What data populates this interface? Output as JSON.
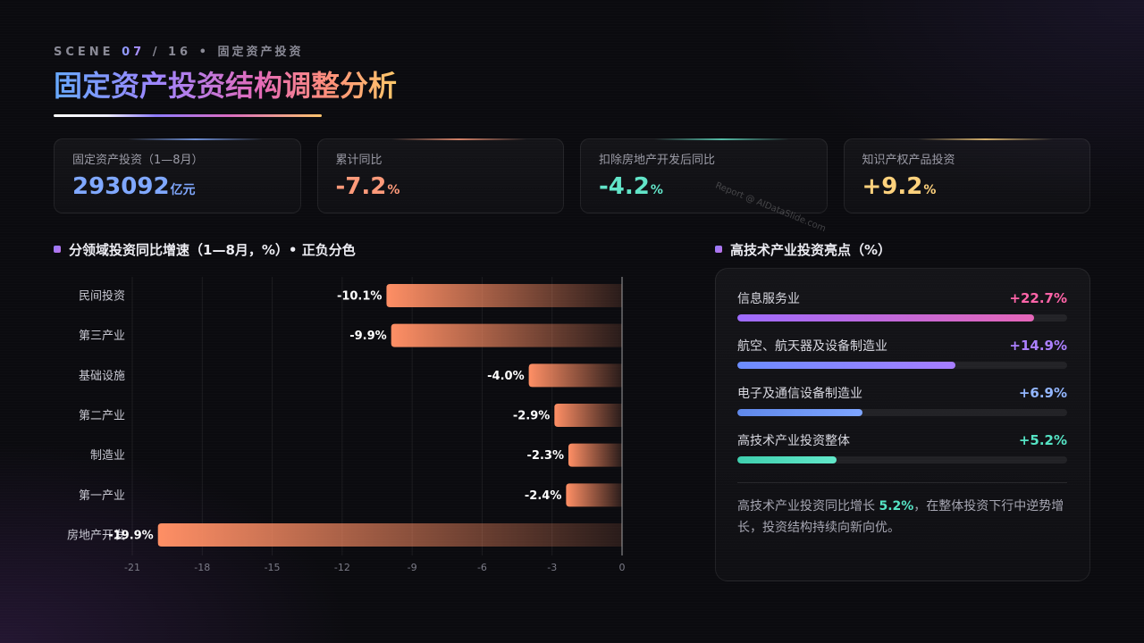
{
  "scene": {
    "label": "SCENE",
    "current": "07",
    "separator": "/",
    "total": "16",
    "bullet": "•",
    "section": "固定资产投资"
  },
  "title": "固定资产投资结构调整分析",
  "kpis": [
    {
      "label": "固定资产投资（1—8月）",
      "value": "293092",
      "unit": "亿元",
      "color": "#80a8ff"
    },
    {
      "label": "累计同比",
      "value": "-7.2",
      "unit": "%",
      "color": "#ff9a7a"
    },
    {
      "label": "扣除房地产开发后同比",
      "value": "-4.2",
      "unit": "%",
      "color": "#62e4c8"
    },
    {
      "label": "知识产权产品投资",
      "value": "+9.2",
      "unit": "%",
      "color": "#ffd27d"
    }
  ],
  "watermark": "Report @ AIDataSlide.com",
  "chart_data": {
    "type": "bar",
    "orientation": "horizontal",
    "title": "分领域投资同比增速（1—8月，%）• 正负分色",
    "categories": [
      "民间投资",
      "第三产业",
      "基础设施",
      "第二产业",
      "制造业",
      "第一产业",
      "房地产开发"
    ],
    "values": [
      -10.1,
      -9.9,
      -4.0,
      -2.9,
      -2.3,
      -2.4,
      -19.9
    ],
    "data_labels": [
      "-10.1%",
      "-9.9%",
      "-4.0%",
      "-2.9%",
      "-2.3%",
      "-2.4%",
      "-19.9%"
    ],
    "xlim": [
      -21,
      0
    ],
    "xticks": [
      -21,
      -18,
      -15,
      -12,
      -9,
      -6,
      -3,
      0
    ],
    "grid": true,
    "bar_color": "#ff8f65"
  },
  "highlights": {
    "title": "高技术产业投资亮点（%）",
    "items": [
      {
        "label": "信息服务业",
        "value": "+22.7%",
        "fill": 0.9,
        "color": "#ff64a8",
        "bar_colors": [
          "#9d6cff",
          "#e566b8"
        ]
      },
      {
        "label": "航空、航天器及设备制造业",
        "value": "+14.9%",
        "fill": 0.66,
        "color": "#ac80ff",
        "bar_colors": [
          "#6b8dff",
          "#a77dff"
        ]
      },
      {
        "label": "电子及通信设备制造业",
        "value": "+6.9%",
        "fill": 0.38,
        "color": "#93b6ff",
        "bar_colors": [
          "#5f88ea",
          "#7ea5ff"
        ]
      },
      {
        "label": "高技术产业投资整体",
        "value": "+5.2%",
        "fill": 0.3,
        "color": "#55e3c4",
        "bar_colors": [
          "#3fcfae",
          "#62e8ca"
        ]
      }
    ],
    "note": {
      "before": "高技术产业投资同比增长 ",
      "highlight": "5.2%",
      "after": "，在整体投资下行中逆势增长，投资结构持续向新向优。",
      "highlight_color": "#55e3c4"
    }
  }
}
